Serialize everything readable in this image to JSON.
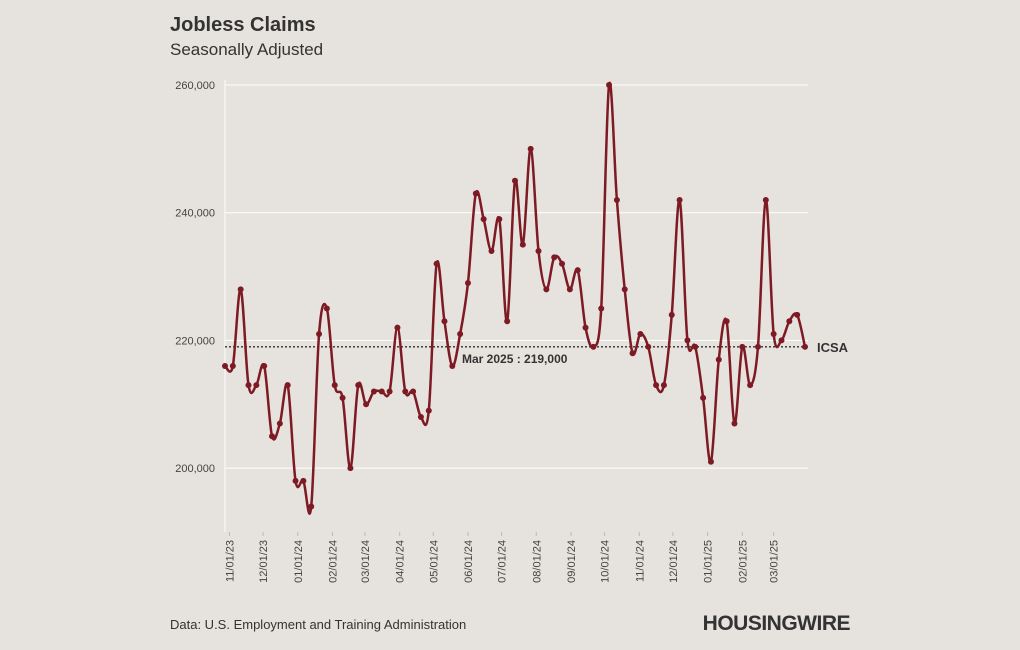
{
  "chart_data": {
    "type": "line",
    "title": "Jobless Claims",
    "subtitle": "Seasonally Adjusted",
    "source": "Data: U.S. Employment and Training Administration",
    "brand": "HOUSINGWIRE",
    "x": [
      "2023-10-28",
      "2023-11-04",
      "2023-11-11",
      "2023-11-18",
      "2023-11-25",
      "2023-12-02",
      "2023-12-09",
      "2023-12-16",
      "2023-12-23",
      "2023-12-30",
      "2024-01-06",
      "2024-01-13",
      "2024-01-20",
      "2024-01-27",
      "2024-02-03",
      "2024-02-10",
      "2024-02-17",
      "2024-02-24",
      "2024-03-02",
      "2024-03-09",
      "2024-03-16",
      "2024-03-23",
      "2024-03-30",
      "2024-04-06",
      "2024-04-13",
      "2024-04-20",
      "2024-04-27",
      "2024-05-04",
      "2024-05-11",
      "2024-05-18",
      "2024-05-25",
      "2024-06-01",
      "2024-06-08",
      "2024-06-15",
      "2024-06-22",
      "2024-06-29",
      "2024-07-06",
      "2024-07-13",
      "2024-07-20",
      "2024-07-27",
      "2024-08-03",
      "2024-08-10",
      "2024-08-17",
      "2024-08-24",
      "2024-08-31",
      "2024-09-07",
      "2024-09-14",
      "2024-09-21",
      "2024-09-28",
      "2024-10-05",
      "2024-10-12",
      "2024-10-19",
      "2024-10-26",
      "2024-11-02",
      "2024-11-09",
      "2024-11-16",
      "2024-11-23",
      "2024-11-30",
      "2024-12-07",
      "2024-12-14",
      "2024-12-21",
      "2024-12-28",
      "2025-01-04",
      "2025-01-11",
      "2025-01-18",
      "2025-01-25",
      "2025-02-01",
      "2025-02-08",
      "2025-02-15",
      "2025-02-22",
      "2025-03-01",
      "2025-03-08",
      "2025-03-15",
      "2025-03-22",
      "2025-03-29"
    ],
    "series": [
      {
        "name": "ICSA",
        "color": "#7d1a24",
        "values": [
          216000,
          216000,
          228000,
          213000,
          213000,
          216000,
          205000,
          207000,
          213000,
          198000,
          198000,
          194000,
          221000,
          225000,
          213000,
          211000,
          200000,
          213000,
          210000,
          212000,
          212000,
          212000,
          222000,
          212000,
          212000,
          208000,
          209000,
          232000,
          223000,
          216000,
          221000,
          229000,
          243000,
          239000,
          234000,
          239000,
          223000,
          245000,
          235000,
          250000,
          234000,
          228000,
          233000,
          232000,
          228000,
          231000,
          222000,
          219000,
          225000,
          260000,
          242000,
          228000,
          218000,
          221000,
          219000,
          213000,
          213000,
          224000,
          242000,
          220000,
          219000,
          211000,
          201000,
          217000,
          223000,
          207000,
          219000,
          213000,
          219000,
          242000,
          221000,
          220000,
          223000,
          224000,
          219000
        ]
      }
    ],
    "reference": {
      "value": 219000,
      "label": "Mar 2025 : 219,000"
    },
    "xlim": [
      "2023-10-28",
      "2025-03-29"
    ],
    "xticks": [
      {
        "value": "2023-11-01",
        "label": "11/01/23"
      },
      {
        "value": "2023-12-01",
        "label": "12/01/23"
      },
      {
        "value": "2024-01-01",
        "label": "01/01/24"
      },
      {
        "value": "2024-02-01",
        "label": "02/01/24"
      },
      {
        "value": "2024-03-01",
        "label": "03/01/24"
      },
      {
        "value": "2024-04-01",
        "label": "04/01/24"
      },
      {
        "value": "2024-05-01",
        "label": "05/01/24"
      },
      {
        "value": "2024-06-01",
        "label": "06/01/24"
      },
      {
        "value": "2024-07-01",
        "label": "07/01/24"
      },
      {
        "value": "2024-08-01",
        "label": "08/01/24"
      },
      {
        "value": "2024-09-01",
        "label": "09/01/24"
      },
      {
        "value": "2024-10-01",
        "label": "10/01/24"
      },
      {
        "value": "2024-11-01",
        "label": "11/01/24"
      },
      {
        "value": "2024-12-01",
        "label": "12/01/24"
      },
      {
        "value": "2025-01-01",
        "label": "01/01/25"
      },
      {
        "value": "2025-02-01",
        "label": "02/01/25"
      },
      {
        "value": "2025-03-01",
        "label": "03/01/25"
      }
    ],
    "ylim": [
      190000,
      260000
    ],
    "yticks": [
      {
        "value": 200000,
        "label": "200,000"
      },
      {
        "value": 220000,
        "label": "220,000"
      },
      {
        "value": 240000,
        "label": "240,000"
      },
      {
        "value": 260000,
        "label": "260,000"
      }
    ],
    "grid": true
  }
}
